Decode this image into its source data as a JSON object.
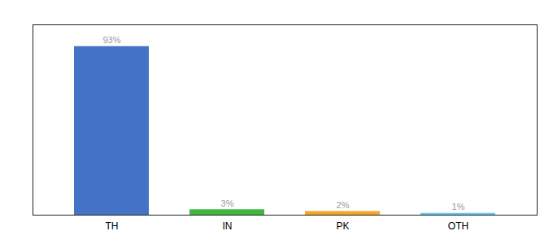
{
  "chart_data": {
    "type": "bar",
    "categories": [
      "TH",
      "IN",
      "PK",
      "OTH"
    ],
    "values": [
      93,
      3,
      2,
      1
    ],
    "value_labels": [
      "93%",
      "3%",
      "2%",
      "1%"
    ],
    "colors": [
      "#4472c4",
      "#3dba3d",
      "#f5a623",
      "#64c8f0"
    ],
    "ylim": [
      0,
      105
    ],
    "data_labels": true,
    "tick_labels": "x",
    "grid": false
  }
}
